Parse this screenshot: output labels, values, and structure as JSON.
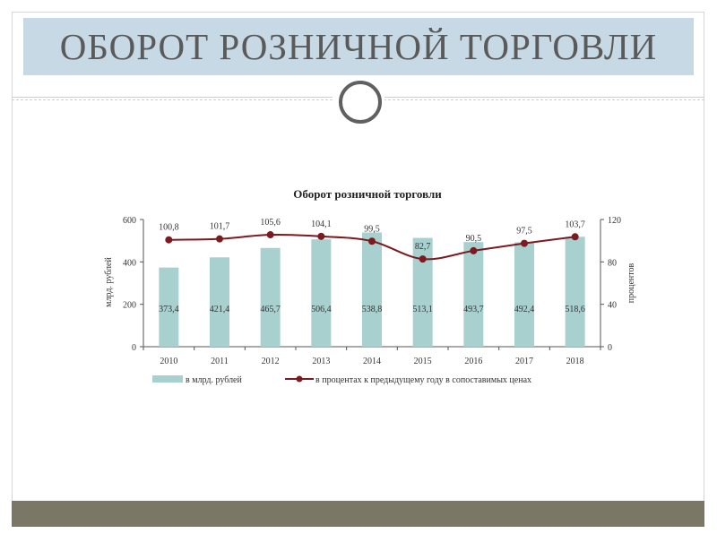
{
  "slide": {
    "title": "ОБОРОТ РОЗНИЧНОЙ ТОРГОВЛИ"
  },
  "colors": {
    "title_bg": "#c7d9e4",
    "bar": "#a8d0cf",
    "line": "#7b1a1f",
    "footer": "#7b7766"
  },
  "icons": {
    "ornament": "ring-icon"
  },
  "chart_data": {
    "type": "bar",
    "title": "Оборот розничной торговли",
    "categories": [
      "2010",
      "2011",
      "2012",
      "2013",
      "2014",
      "2015",
      "2016",
      "2017",
      "2018"
    ],
    "ylabel": "млрд. рублей",
    "y2label": "процентов",
    "ylim": [
      0,
      600
    ],
    "y2lim": [
      0,
      120
    ],
    "yticks": [
      "0",
      "200",
      "400",
      "600"
    ],
    "y2ticks": [
      "0",
      "40",
      "80",
      "120"
    ],
    "grid": false,
    "legend_position": "bottom",
    "series": [
      {
        "name": "в млрд. рублей",
        "type": "bar",
        "axis": "left",
        "values": [
          373.4,
          421.4,
          465.7,
          506.4,
          538.8,
          513.1,
          493.7,
          492.4,
          518.6
        ],
        "labels": [
          "373,4",
          "421,4",
          "465,7",
          "506,4",
          "538,8",
          "513,1",
          "493,7",
          "492,4",
          "518,6"
        ]
      },
      {
        "name": "в процентах  к предыдущему году в сопоставимых ценах",
        "type": "line",
        "axis": "right",
        "values": [
          100.8,
          101.7,
          105.6,
          104.1,
          99.5,
          82.7,
          90.5,
          97.5,
          103.7
        ],
        "labels": [
          "100,8",
          "101,7",
          "105,6",
          "104,1",
          "99,5",
          "82,7",
          "90,5",
          "97,5",
          "103,7"
        ]
      }
    ]
  }
}
